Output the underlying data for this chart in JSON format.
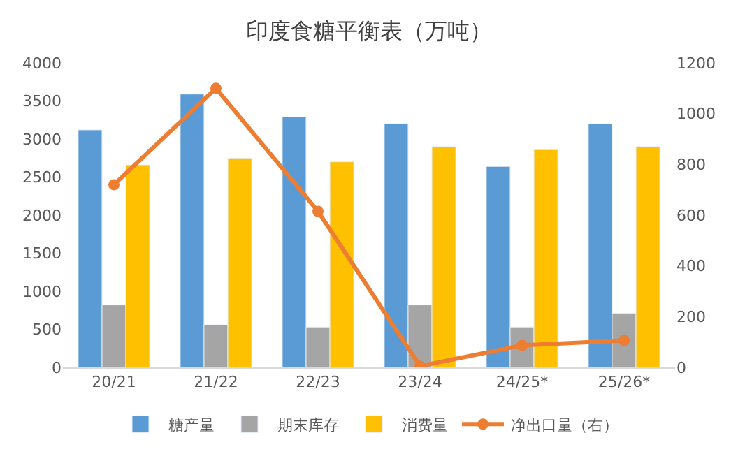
{
  "chart_data": {
    "type": "bar",
    "title": "印度食糖平衡表（万吨）",
    "categories": [
      "20/21",
      "21/22",
      "22/23",
      "23/24",
      "24/25*",
      "25/26*"
    ],
    "series": [
      {
        "name": "糖产量",
        "color": "#5b9bd5",
        "values": [
          3120,
          3590,
          3290,
          3200,
          2640,
          3200
        ]
      },
      {
        "name": "期末库存",
        "color": "#a5a5a5",
        "values": [
          820,
          560,
          530,
          820,
          530,
          710
        ]
      },
      {
        "name": "消费量",
        "color": "#ffc000",
        "values": [
          2660,
          2750,
          2700,
          2900,
          2860,
          2900
        ]
      },
      {
        "name": "净出口量（右）",
        "color": "#ed7d31",
        "type": "line",
        "axis": "y2",
        "marker": "circle",
        "values": [
          720,
          1100,
          615,
          5,
          87,
          106
        ]
      }
    ],
    "ylim": [
      0,
      4000
    ],
    "yticks": [
      0,
      500,
      1000,
      1500,
      2000,
      2500,
      3000,
      3500,
      4000
    ],
    "y2lim": [
      0,
      1200
    ],
    "y2ticks": [
      0,
      200,
      400,
      600,
      800,
      1000,
      1200
    ],
    "legend": "bottom"
  }
}
